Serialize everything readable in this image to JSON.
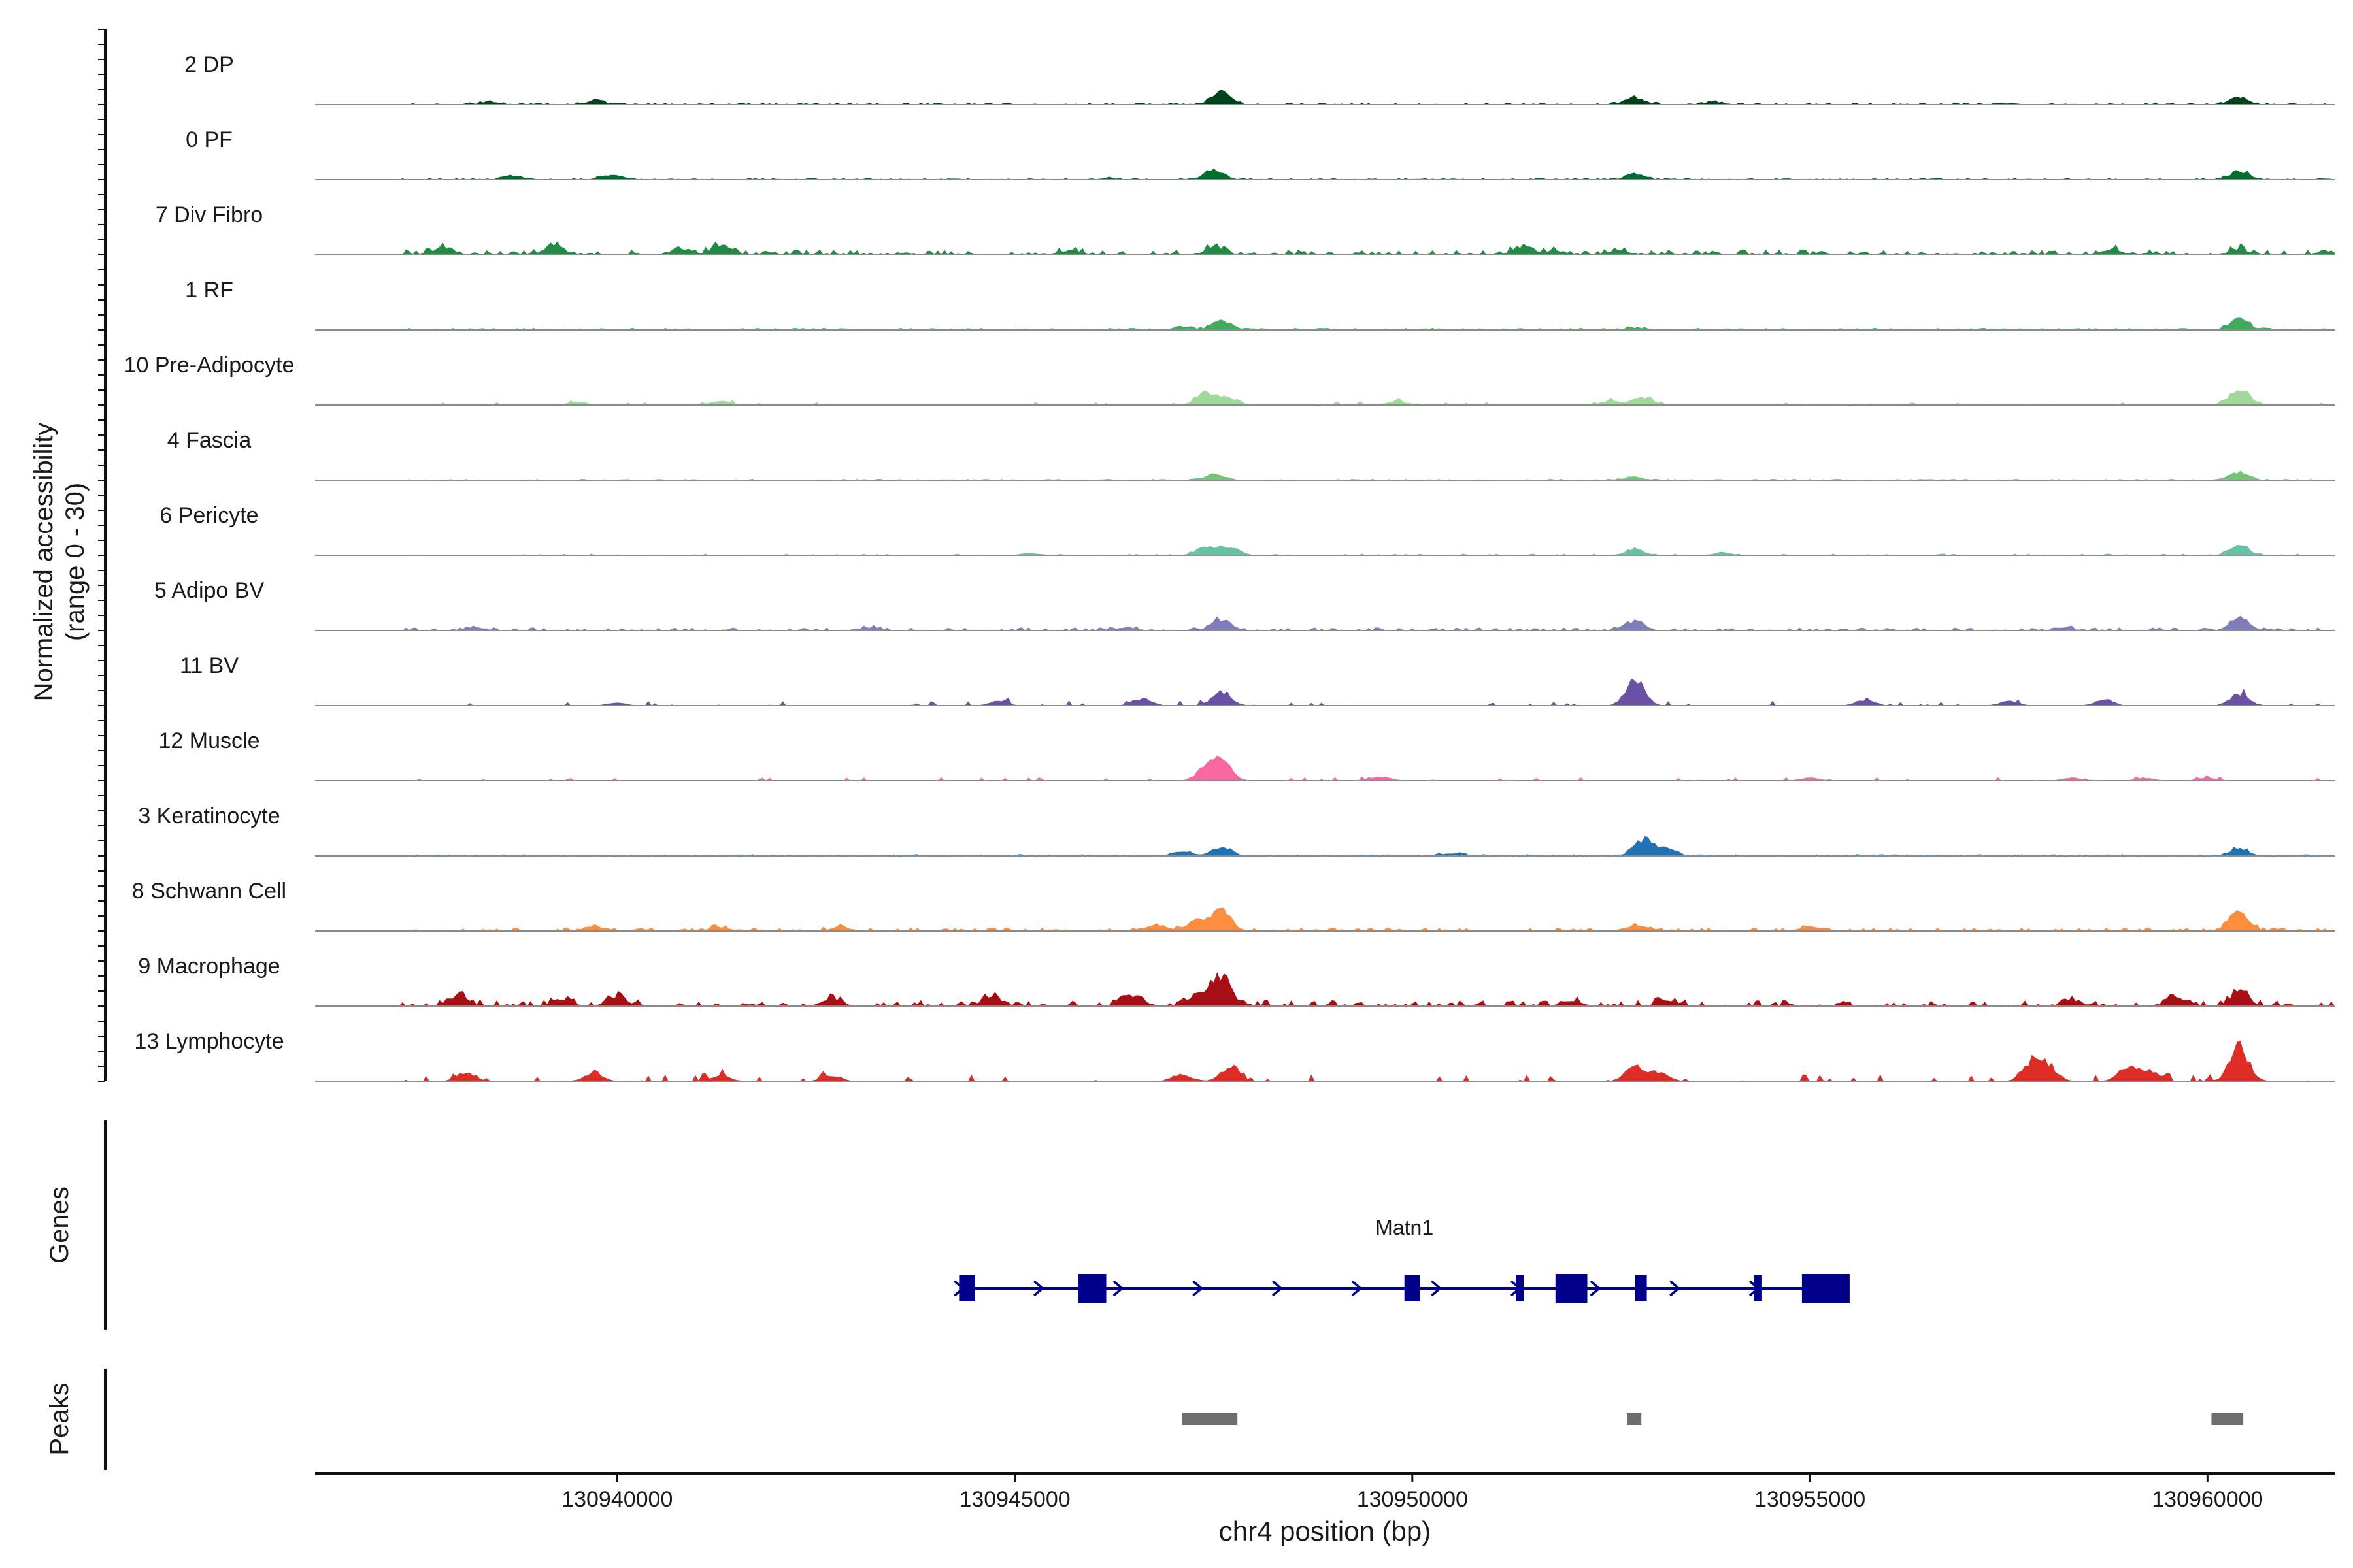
{
  "chart_data": {
    "type": "coverage",
    "y_axis_label_line1": "Normalized accessibility",
    "y_axis_label_line2": "(range 0 - 30)",
    "y_range": [
      0,
      30
    ],
    "x_axis_label": "chr4 position (bp)",
    "x_range": [
      130936200,
      130961600
    ],
    "x_ticks": [
      130940000,
      130945000,
      130950000,
      130955000,
      130960000
    ],
    "x_tick_labels": [
      "130940000",
      "130945000",
      "130950000",
      "130955000",
      "130960000"
    ],
    "tracks": [
      {
        "name": "2 DP",
        "color": "#00441b",
        "noise": 1.2,
        "density": 0.55,
        "peaks": [
          [
            130947600,
            9
          ],
          [
            130952800,
            5
          ],
          [
            130960400,
            5
          ],
          [
            130939700,
            2.5
          ],
          [
            130938400,
            1.8
          ],
          [
            130953800,
            1.5
          ],
          [
            130957500,
            1
          ]
        ]
      },
      {
        "name": "0 PF",
        "color": "#006d2c",
        "noise": 1.0,
        "density": 0.6,
        "peaks": [
          [
            130947500,
            7
          ],
          [
            130960400,
            6
          ],
          [
            130952800,
            3.5
          ],
          [
            130938700,
            3
          ],
          [
            130939900,
            3
          ],
          [
            130946200,
            1
          ]
        ]
      },
      {
        "name": "7 Div Fibro",
        "color": "#238b45",
        "noise": 3.2,
        "density": 0.5,
        "peaks": [
          [
            130937800,
            5
          ],
          [
            130939200,
            6.5
          ],
          [
            130941300,
            6
          ],
          [
            130940800,
            4
          ],
          [
            130947500,
            5
          ],
          [
            130951400,
            6
          ],
          [
            130951800,
            3
          ],
          [
            130945700,
            3
          ],
          [
            130958800,
            4
          ],
          [
            130960400,
            4
          ],
          [
            130952600,
            3
          ]
        ]
      },
      {
        "name": "1 RF",
        "color": "#41ab5d",
        "noise": 1.2,
        "density": 0.6,
        "peaks": [
          [
            130947600,
            6
          ],
          [
            130960400,
            7
          ],
          [
            130947100,
            2
          ],
          [
            130952800,
            1.5
          ]
        ]
      },
      {
        "name": "10 Pre-Adipocyte",
        "color": "#a1d99b",
        "noise": 1.8,
        "density": 0.12,
        "peaks": [
          [
            130947400,
            9
          ],
          [
            130947700,
            5
          ],
          [
            130952900,
            6
          ],
          [
            130952500,
            3
          ],
          [
            130960400,
            12
          ],
          [
            130949800,
            3
          ],
          [
            130941300,
            3
          ],
          [
            130939500,
            2
          ]
        ]
      },
      {
        "name": "4 Fascia",
        "color": "#74c476",
        "noise": 0.8,
        "density": 0.6,
        "peaks": [
          [
            130947500,
            4
          ],
          [
            130960400,
            6
          ],
          [
            130952800,
            2
          ]
        ]
      },
      {
        "name": "6 Pericyte",
        "color": "#66c2a4",
        "noise": 1.0,
        "density": 0.28,
        "peaks": [
          [
            130947400,
            6
          ],
          [
            130947700,
            6
          ],
          [
            130952800,
            4
          ],
          [
            130960400,
            7
          ],
          [
            130953900,
            2
          ],
          [
            130945200,
            1.5
          ]
        ]
      },
      {
        "name": "5 Adipo BV",
        "color": "#807dba",
        "noise": 1.8,
        "density": 0.5,
        "peaks": [
          [
            130947600,
            8
          ],
          [
            130952800,
            6
          ],
          [
            130960400,
            8
          ],
          [
            130938200,
            2
          ],
          [
            130943200,
            2
          ],
          [
            130946400,
            2
          ],
          [
            130958200,
            2
          ]
        ]
      },
      {
        "name": "11 BV",
        "color": "#6a51a3",
        "noise": 3.0,
        "density": 0.1,
        "peaks": [
          [
            130952800,
            18
          ],
          [
            130947600,
            10
          ],
          [
            130946600,
            5
          ],
          [
            130960400,
            8
          ],
          [
            130958700,
            4
          ],
          [
            130955700,
            4
          ],
          [
            130944800,
            3
          ],
          [
            130957500,
            3
          ],
          [
            130940000,
            2
          ]
        ]
      },
      {
        "name": "12 Muscle",
        "color": "#f768a1",
        "noise": 2.0,
        "density": 0.1,
        "peaks": [
          [
            130947600,
            14
          ],
          [
            130947400,
            8
          ],
          [
            130949600,
            3
          ],
          [
            130955000,
            2
          ],
          [
            130958300,
            2
          ],
          [
            130959200,
            2
          ],
          [
            130960000,
            2
          ]
        ]
      },
      {
        "name": "3 Keratinocyte",
        "color": "#2171b5",
        "noise": 1.0,
        "density": 0.6,
        "peaks": [
          [
            130952900,
            11
          ],
          [
            130953200,
            5
          ],
          [
            130947600,
            6
          ],
          [
            130947100,
            3
          ],
          [
            130950500,
            2
          ],
          [
            130960400,
            5
          ]
        ]
      },
      {
        "name": "8 Schwann Cell",
        "color": "#fd8d3c",
        "noise": 2.0,
        "density": 0.45,
        "peaks": [
          [
            130947600,
            14
          ],
          [
            130947300,
            7
          ],
          [
            130946800,
            4
          ],
          [
            130960400,
            14
          ],
          [
            130952800,
            4
          ],
          [
            130955000,
            3
          ],
          [
            130939700,
            3
          ],
          [
            130942800,
            3
          ],
          [
            130941300,
            3
          ]
        ]
      },
      {
        "name": "9 Macrophage",
        "color": "#a50f15",
        "noise": 3.5,
        "density": 0.5,
        "peaks": [
          [
            130947600,
            22
          ],
          [
            130947300,
            8
          ],
          [
            130946500,
            8
          ],
          [
            130938000,
            7
          ],
          [
            130940000,
            7
          ],
          [
            130939300,
            5
          ],
          [
            130942700,
            5
          ],
          [
            130944700,
            6
          ],
          [
            130952000,
            4
          ],
          [
            130953200,
            4
          ],
          [
            130958300,
            4
          ],
          [
            130959600,
            6
          ],
          [
            130960400,
            10
          ]
        ]
      },
      {
        "name": "13 Lymphocyte",
        "color": "#de2d26",
        "noise": 4.0,
        "density": 0.12,
        "peaks": [
          [
            130960400,
            24
          ],
          [
            130957800,
            14
          ],
          [
            130958000,
            9
          ],
          [
            130952800,
            10
          ],
          [
            130953100,
            6
          ],
          [
            130947700,
            9
          ],
          [
            130947100,
            5
          ],
          [
            130959000,
            10
          ],
          [
            130959300,
            7
          ],
          [
            130938100,
            6
          ],
          [
            130939700,
            5
          ],
          [
            130941300,
            4
          ],
          [
            130942700,
            4
          ]
        ]
      }
    ],
    "genes_label": "Genes",
    "gene": {
      "name": "Matn1",
      "start": 130944300,
      "end": 130955500,
      "strand": "+",
      "exons": [
        [
          130944300,
          130944500
        ],
        [
          130945800,
          130946150
        ],
        [
          130949900,
          130950100
        ],
        [
          130951300,
          130951400
        ],
        [
          130951800,
          130952200
        ],
        [
          130952800,
          130952950
        ],
        [
          130954300,
          130954380
        ],
        [
          130954900,
          130955500
        ]
      ]
    },
    "peaks_label": "Peaks",
    "peak_regions": [
      [
        130947100,
        130947800
      ],
      [
        130952700,
        130952880
      ],
      [
        130960050,
        130960450
      ]
    ]
  }
}
